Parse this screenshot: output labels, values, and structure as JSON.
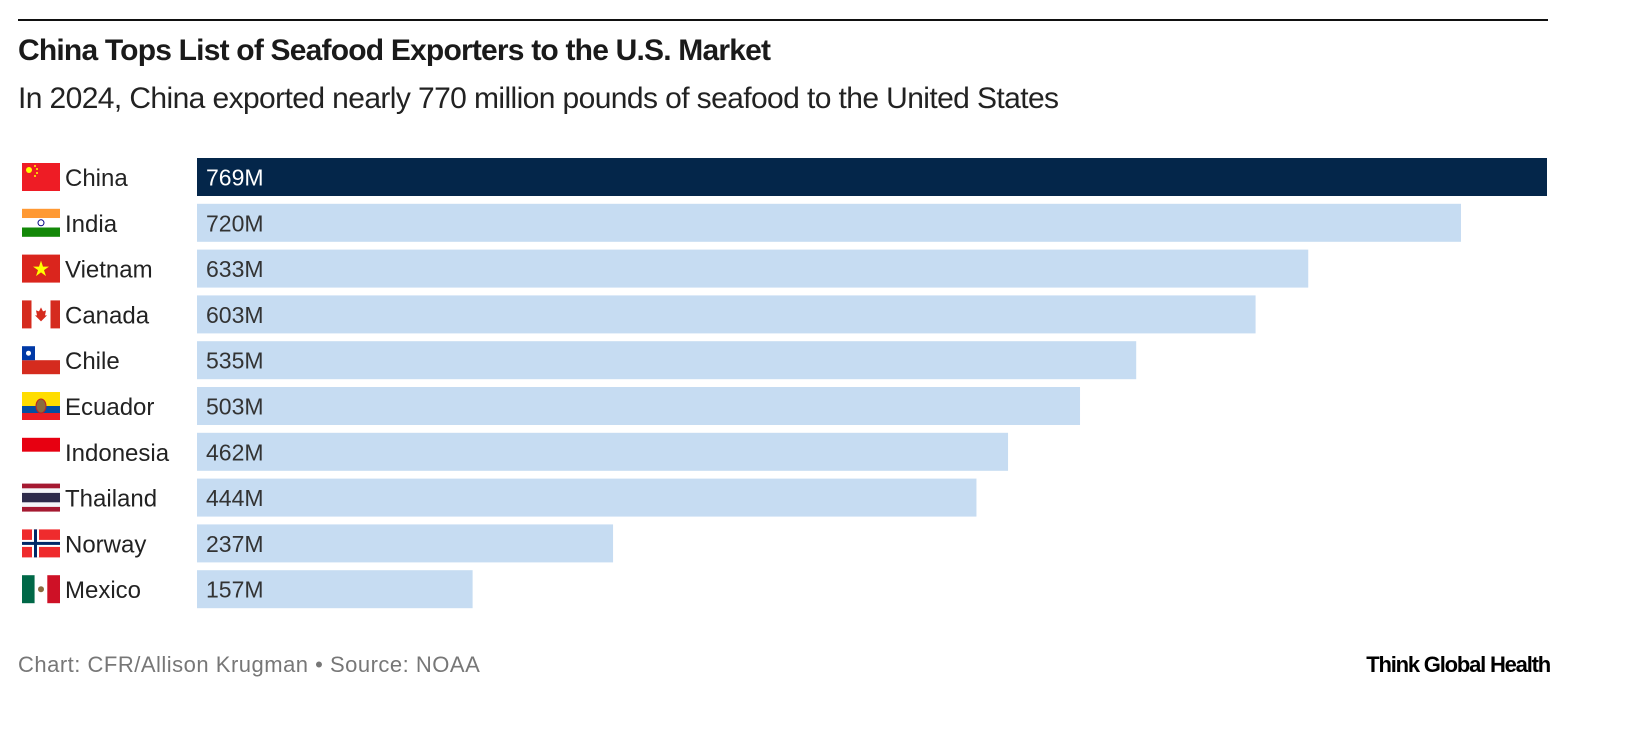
{
  "title": "China Tops List of Seafood Exporters to the U.S. Market",
  "subtitle": "In 2024, China exported nearly 770 million pounds of seafood to the United States",
  "footer": "Chart: CFR/Allison Krugman • Source: NOAA",
  "logo": "Think Global Health",
  "colors": {
    "highlight": "#04264A",
    "bar": "#C6DCF2",
    "highlight_label": "#ffffff",
    "label": "#333333"
  },
  "chart_data": {
    "type": "bar",
    "orientation": "horizontal",
    "categories": [
      "China",
      "India",
      "Vietnam",
      "Canada",
      "Chile",
      "Ecuador",
      "Indonesia",
      "Thailand",
      "Norway",
      "Mexico"
    ],
    "values": [
      769,
      720,
      633,
      603,
      535,
      503,
      462,
      444,
      237,
      157
    ],
    "labels": [
      "769M",
      "720M",
      "633M",
      "603M",
      "535M",
      "503M",
      "462M",
      "444M",
      "237M",
      "157M"
    ],
    "flags": [
      "flag-china-icon",
      "flag-india-icon",
      "flag-vietnam-icon",
      "flag-canada-icon",
      "flag-chile-icon",
      "flag-ecuador-icon",
      "flag-indonesia-icon",
      "flag-thailand-icon",
      "flag-norway-icon",
      "flag-mexico-icon"
    ],
    "highlighted": "China",
    "xlim": [
      0,
      769
    ],
    "grid": false
  }
}
